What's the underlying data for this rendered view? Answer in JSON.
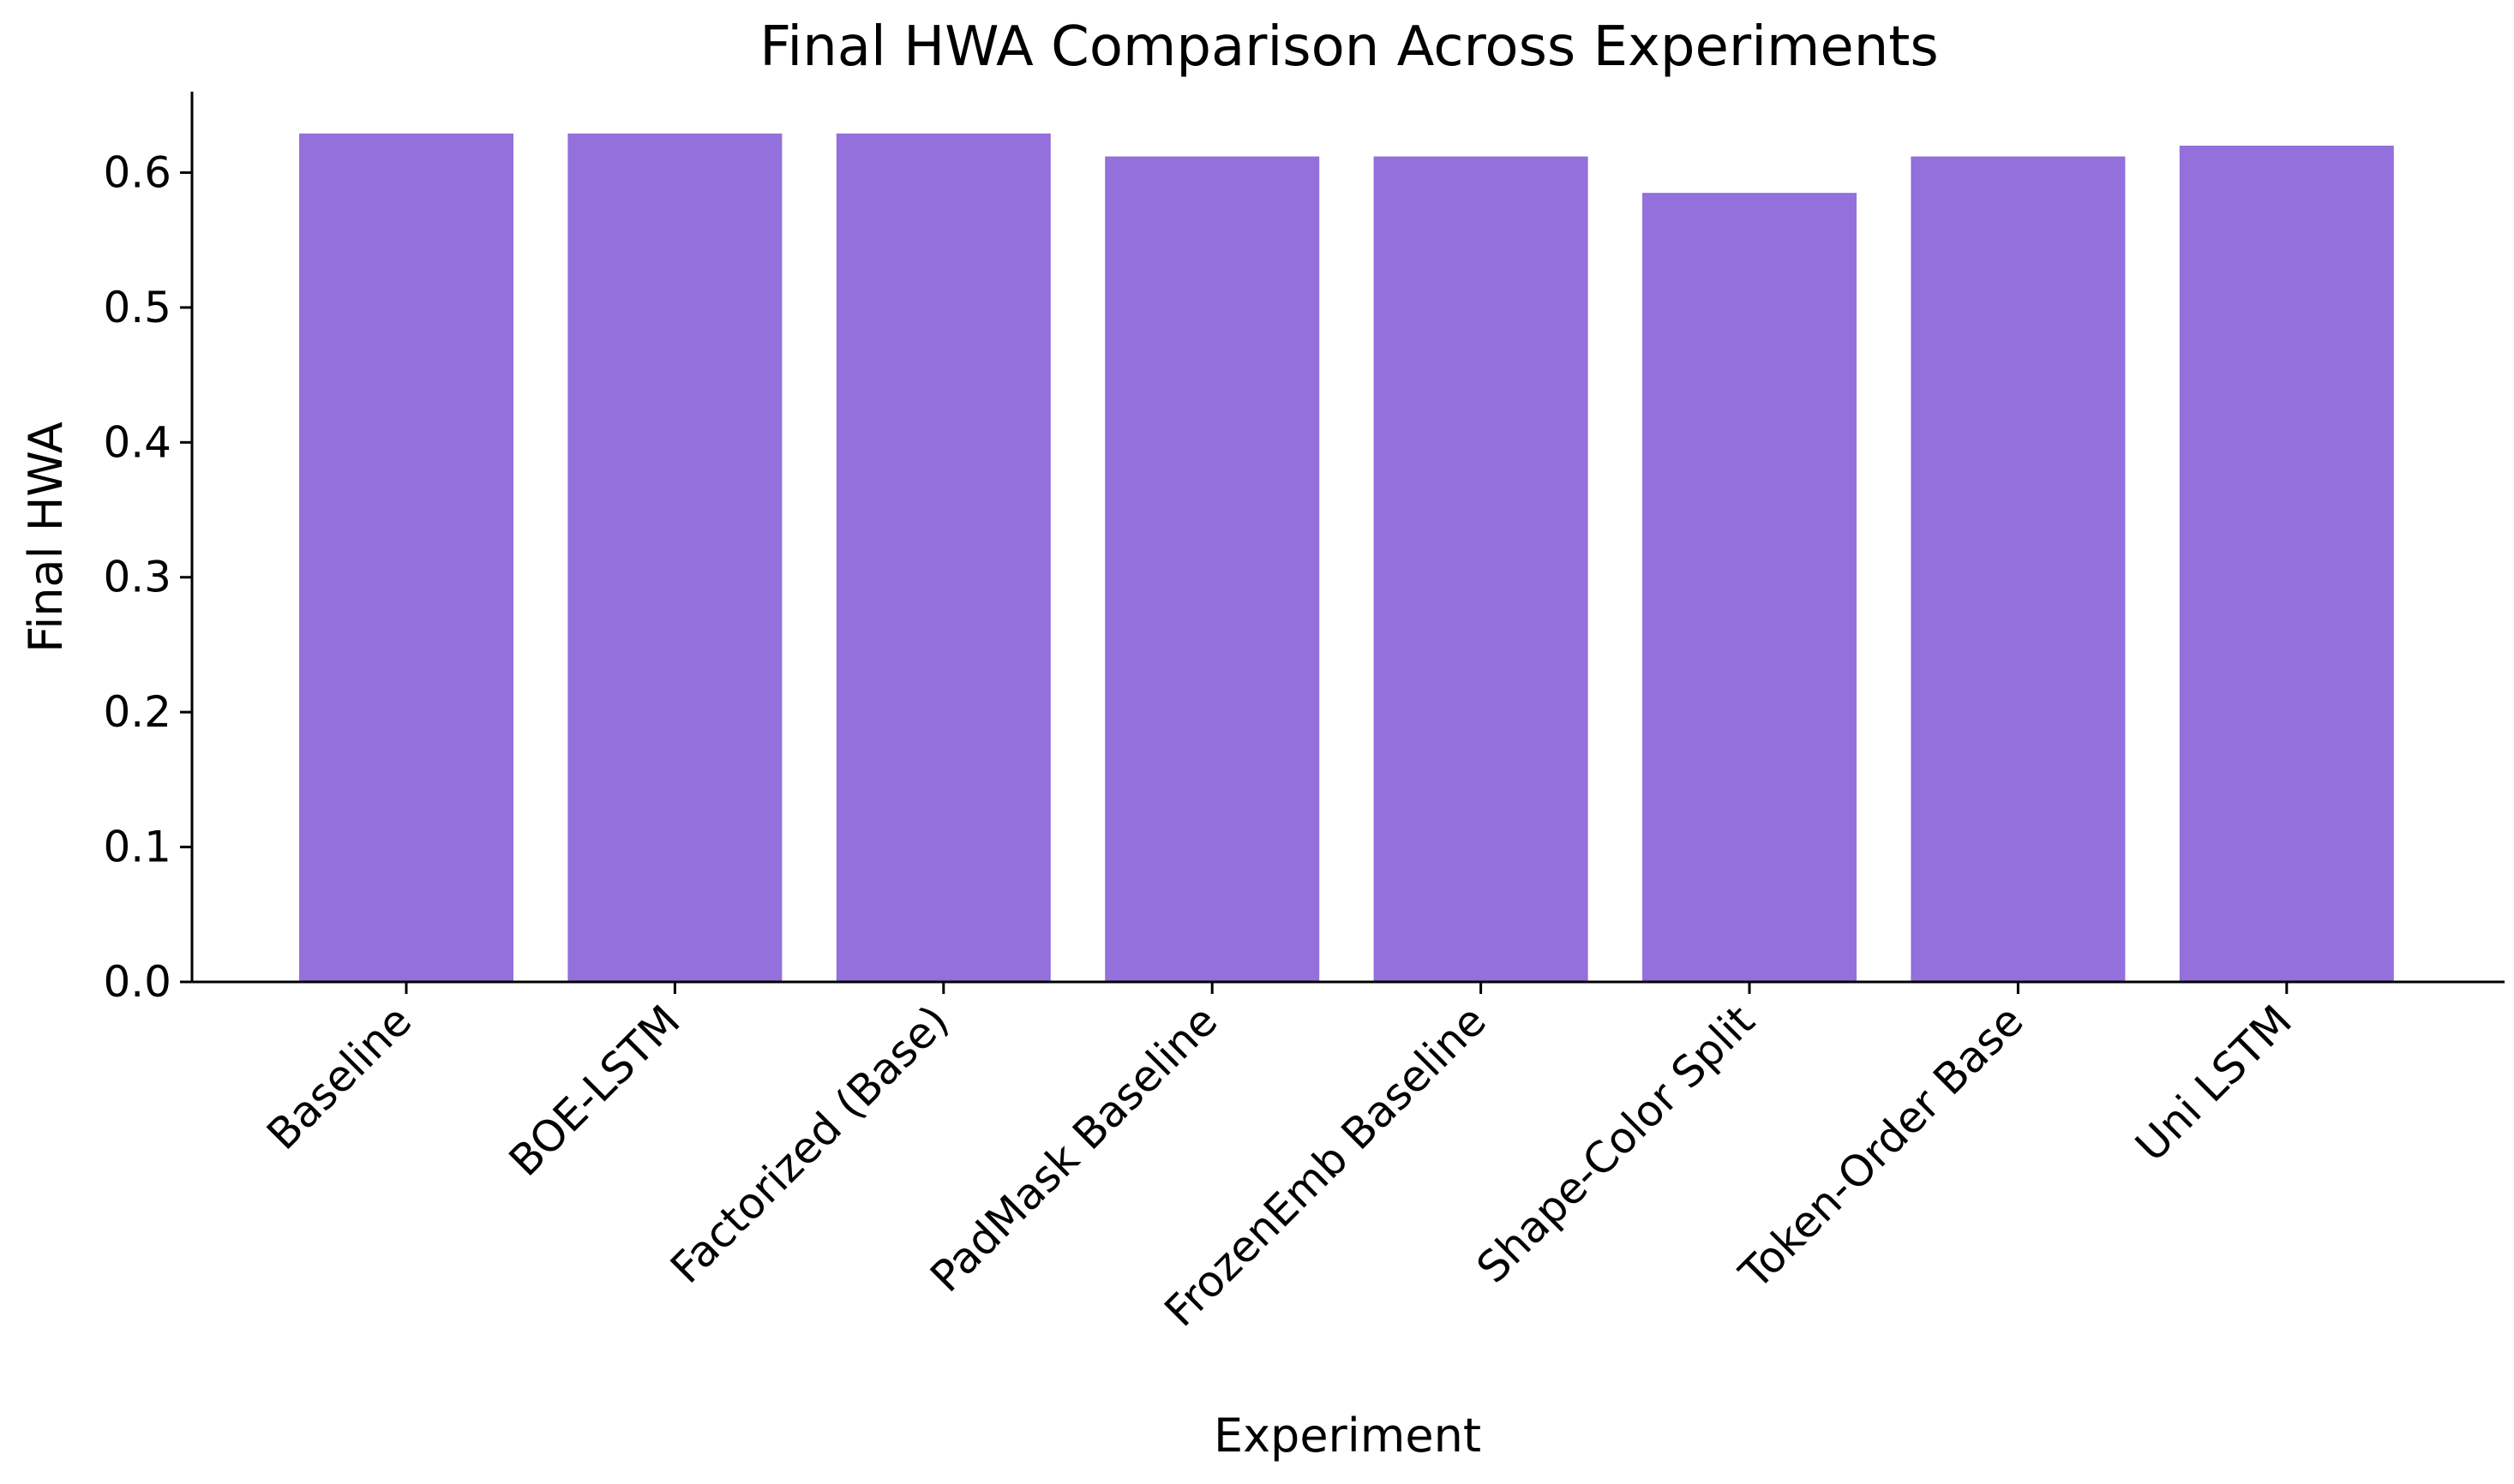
{
  "chart_data": {
    "type": "bar",
    "title": "Final HWA Comparison Across Experiments",
    "xlabel": "Experiment",
    "ylabel": "Final HWA",
    "categories": [
      "Baseline",
      "BOE-LSTM",
      "Factorized (Base)",
      "PadMask Baseline",
      "FrozenEmb Baseline",
      "Shape-Color Split",
      "Token-Order Base",
      "Uni LSTM"
    ],
    "values": [
      0.629,
      0.629,
      0.629,
      0.612,
      0.612,
      0.585,
      0.612,
      0.62
    ],
    "ylim": [
      0,
      0.66
    ],
    "yticks": [
      0.0,
      0.1,
      0.2,
      0.3,
      0.4,
      0.5,
      0.6
    ],
    "ytick_labels": [
      "0.0",
      "0.1",
      "0.2",
      "0.3",
      "0.4",
      "0.5",
      "0.6"
    ],
    "grid": false,
    "legend": "none",
    "bar_color": "#9370db"
  }
}
